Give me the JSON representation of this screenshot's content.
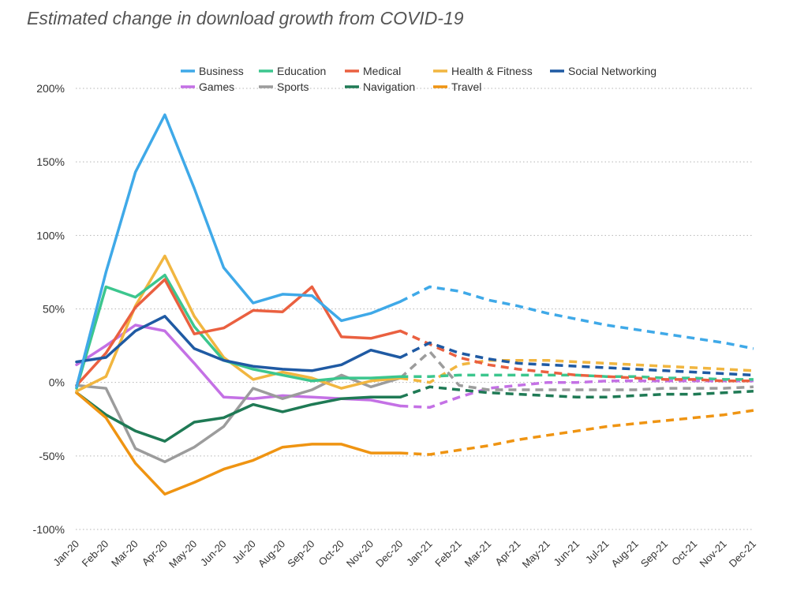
{
  "chart_data": {
    "type": "line",
    "title": "Estimated change in download growth from COVID-19",
    "xlabel": "",
    "ylabel": "",
    "ylim": [
      -100,
      200
    ],
    "yticks": [
      {
        "v": 200,
        "label": "200%"
      },
      {
        "v": 150,
        "label": "150%"
      },
      {
        "v": 100,
        "label": "100%"
      },
      {
        "v": 50,
        "label": "50%"
      },
      {
        "v": 0,
        "label": "0%"
      },
      {
        "v": -50,
        "label": "-50%"
      },
      {
        "v": -100,
        "label": "-100%"
      }
    ],
    "grid": "horizontal dotted",
    "legend_position": "top",
    "categories": [
      "Jan-20",
      "Feb-20",
      "Mar-20",
      "Apr-20",
      "May-20",
      "Jun-20",
      "Jul-20",
      "Aug-20",
      "Sep-20",
      "Oct-20",
      "Nov-20",
      "Dec-20",
      "Jan-21",
      "Feb-21",
      "Mar-21",
      "Apr-21",
      "May-21",
      "Jun-21",
      "Jul-21",
      "Aug-21",
      "Sep-21",
      "Oct-21",
      "Nov-21",
      "Dec-21"
    ],
    "actual_through": "Dec-20",
    "projected_from": "Dec-20",
    "series": [
      {
        "name": "Business",
        "color": "#3fa9e8",
        "values": [
          -3,
          75,
          143,
          182,
          132,
          78,
          54,
          60,
          59,
          42,
          47,
          55,
          65,
          62,
          56,
          52,
          47,
          43,
          39,
          36,
          33,
          30,
          27,
          23
        ]
      },
      {
        "name": "Education",
        "color": "#3cc68e",
        "values": [
          -4,
          65,
          58,
          73,
          38,
          15,
          9,
          5,
          1,
          3,
          3,
          4,
          4,
          5,
          5,
          5,
          5,
          5,
          4,
          4,
          3,
          3,
          2,
          2
        ]
      },
      {
        "name": "Medical",
        "color": "#ea6040",
        "values": [
          -2,
          20,
          51,
          70,
          33,
          37,
          49,
          48,
          65,
          31,
          30,
          35,
          26,
          17,
          12,
          9,
          7,
          5,
          4,
          3,
          2,
          2,
          1,
          1
        ]
      },
      {
        "name": "Health & Fitness",
        "color": "#f1b640",
        "values": [
          -6,
          4,
          52,
          86,
          45,
          17,
          2,
          7,
          3,
          -4,
          1,
          3,
          0,
          12,
          15,
          15,
          15,
          14,
          13,
          12,
          11,
          10,
          9,
          8
        ]
      },
      {
        "name": "Social Networking",
        "color": "#1f5aa3",
        "values": [
          14,
          17,
          35,
          45,
          23,
          15,
          11,
          9,
          8,
          12,
          22,
          17,
          27,
          20,
          16,
          13,
          12,
          11,
          10,
          9,
          8,
          7,
          6,
          5
        ]
      },
      {
        "name": "Games",
        "color": "#c471e5",
        "values": [
          12,
          25,
          39,
          35,
          13,
          -10,
          -11,
          -9,
          -10,
          -11,
          -12,
          -16,
          -17,
          -10,
          -4,
          -2,
          0,
          0,
          1,
          1,
          1,
          1,
          1,
          1
        ]
      },
      {
        "name": "Sports",
        "color": "#9c9c9c",
        "values": [
          -2,
          -4,
          -45,
          -54,
          -44,
          -30,
          -4,
          -11,
          -5,
          5,
          -3,
          3,
          21,
          -2,
          -5,
          -5,
          -5,
          -5,
          -5,
          -5,
          -4,
          -4,
          -4,
          -3
        ]
      },
      {
        "name": "Navigation",
        "color": "#1f7a55",
        "values": [
          -7,
          -22,
          -33,
          -40,
          -27,
          -24,
          -15,
          -20,
          -15,
          -11,
          -10,
          -10,
          -3,
          -5,
          -7,
          -8,
          -9,
          -10,
          -10,
          -9,
          -8,
          -8,
          -7,
          -6
        ]
      },
      {
        "name": "Travel",
        "color": "#ef9412",
        "values": [
          -7,
          -24,
          -55,
          -76,
          -68,
          -59,
          -53,
          -44,
          -42,
          -42,
          -48,
          -48,
          -49,
          -46,
          -43,
          -39,
          -36,
          -33,
          -30,
          -28,
          -26,
          -24,
          -22,
          -19
        ]
      }
    ]
  }
}
